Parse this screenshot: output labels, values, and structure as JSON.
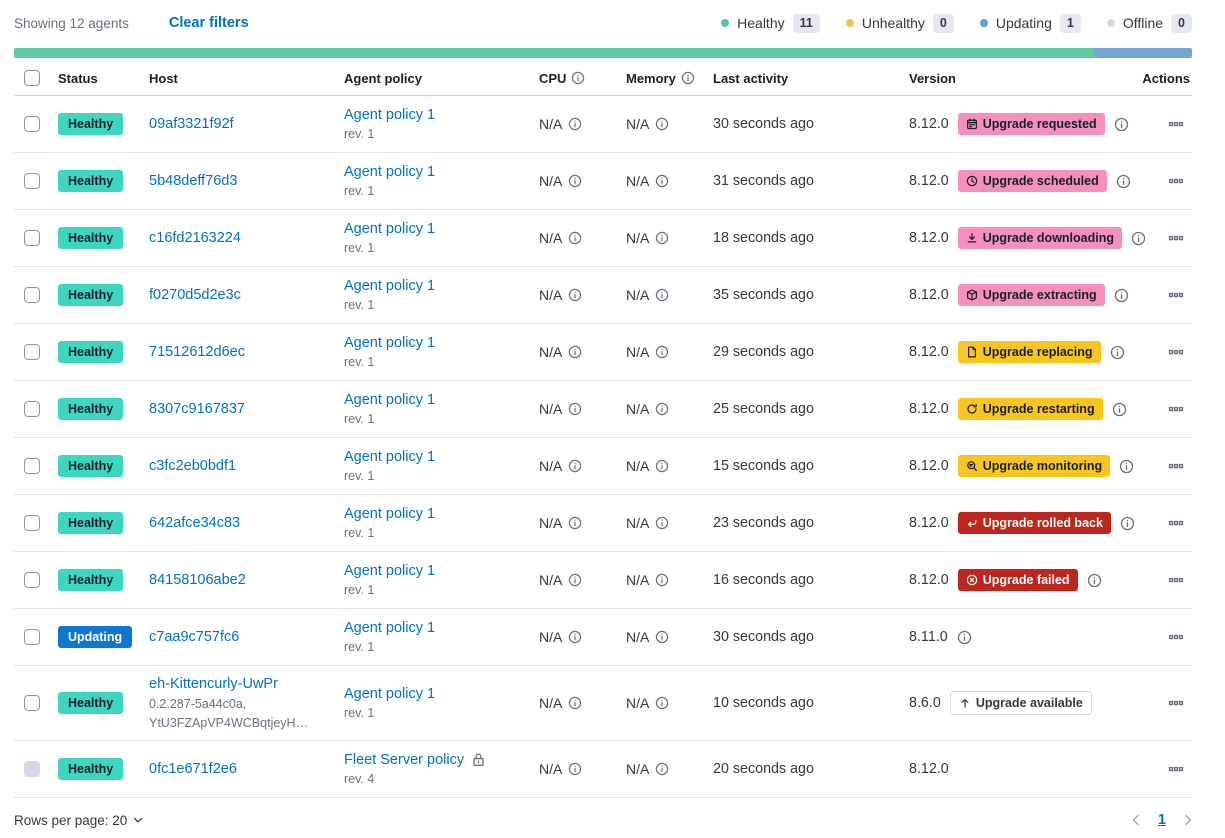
{
  "toolbar": {
    "showing_text": "Showing 12 agents",
    "clear_filters_label": "Clear filters",
    "legend": [
      {
        "label": "Healthy",
        "count": "11",
        "color": "#4ec5a5"
      },
      {
        "label": "Unhealthy",
        "count": "0",
        "color": "#e8c35f"
      },
      {
        "label": "Updating",
        "count": "1",
        "color": "#5b9fd8"
      },
      {
        "label": "Offline",
        "count": "0",
        "color": "#d3dae6"
      }
    ]
  },
  "status_bar": {
    "segments": [
      {
        "status": "healthy",
        "weight": 11,
        "color": "#5fc9a2"
      },
      {
        "status": "updating",
        "weight": 1,
        "color": "#74a6d4"
      }
    ]
  },
  "colors": {
    "healthy_badge": "#3dd6bf",
    "updating_badge": "#0e77d2",
    "accent_badge": "#f68fbe",
    "warning_badge": "#fac51d",
    "danger_badge": "#bd271e",
    "link": "#0071c2"
  },
  "table": {
    "columns": [
      "Status",
      "Host",
      "Agent policy",
      "CPU",
      "Memory",
      "Last activity",
      "Version",
      "Actions"
    ],
    "cpu_header_icon": "info-icon",
    "memory_header_icon": "info-icon",
    "actions_icon": "boxes-horizontal-icon",
    "info_icon": "info-icon",
    "lock_icon": "lock-icon"
  },
  "rows": [
    {
      "status": "Healthy",
      "status_kind": "healthy",
      "host": "09af3321f92f",
      "host_sub": [],
      "policy": "Agent policy 1",
      "policy_rev": "rev. 1",
      "policy_locked": false,
      "cpu": "N/A",
      "memory": "N/A",
      "last_activity": "30 seconds ago",
      "version": "8.12.0",
      "upgrade_badge": {
        "label": "Upgrade requested",
        "kind": "accent",
        "icon": "calendar-icon"
      },
      "version_info": true,
      "checkbox_disabled": false
    },
    {
      "status": "Healthy",
      "status_kind": "healthy",
      "host": "5b48deff76d3",
      "host_sub": [],
      "policy": "Agent policy 1",
      "policy_rev": "rev. 1",
      "policy_locked": false,
      "cpu": "N/A",
      "memory": "N/A",
      "last_activity": "31 seconds ago",
      "version": "8.12.0",
      "upgrade_badge": {
        "label": "Upgrade scheduled",
        "kind": "accent",
        "icon": "clock-icon"
      },
      "version_info": true,
      "checkbox_disabled": false
    },
    {
      "status": "Healthy",
      "status_kind": "healthy",
      "host": "c16fd2163224",
      "host_sub": [],
      "policy": "Agent policy 1",
      "policy_rev": "rev. 1",
      "policy_locked": false,
      "cpu": "N/A",
      "memory": "N/A",
      "last_activity": "18 seconds ago",
      "version": "8.12.0",
      "upgrade_badge": {
        "label": "Upgrade downloading",
        "kind": "accent",
        "icon": "download-icon"
      },
      "version_info": true,
      "checkbox_disabled": false
    },
    {
      "status": "Healthy",
      "status_kind": "healthy",
      "host": "f0270d5d2e3c",
      "host_sub": [],
      "policy": "Agent policy 1",
      "policy_rev": "rev. 1",
      "policy_locked": false,
      "cpu": "N/A",
      "memory": "N/A",
      "last_activity": "35 seconds ago",
      "version": "8.12.0",
      "upgrade_badge": {
        "label": "Upgrade extracting",
        "kind": "accent",
        "icon": "package-icon"
      },
      "version_info": true,
      "checkbox_disabled": false
    },
    {
      "status": "Healthy",
      "status_kind": "healthy",
      "host": "71512612d6ec",
      "host_sub": [],
      "policy": "Agent policy 1",
      "policy_rev": "rev. 1",
      "policy_locked": false,
      "cpu": "N/A",
      "memory": "N/A",
      "last_activity": "29 seconds ago",
      "version": "8.12.0",
      "upgrade_badge": {
        "label": "Upgrade replacing",
        "kind": "warning",
        "icon": "document-icon"
      },
      "version_info": true,
      "checkbox_disabled": false
    },
    {
      "status": "Healthy",
      "status_kind": "healthy",
      "host": "8307c9167837",
      "host_sub": [],
      "policy": "Agent policy 1",
      "policy_rev": "rev. 1",
      "policy_locked": false,
      "cpu": "N/A",
      "memory": "N/A",
      "last_activity": "25 seconds ago",
      "version": "8.12.0",
      "upgrade_badge": {
        "label": "Upgrade restarting",
        "kind": "warning",
        "icon": "refresh-icon"
      },
      "version_info": true,
      "checkbox_disabled": false
    },
    {
      "status": "Healthy",
      "status_kind": "healthy",
      "host": "c3fc2eb0bdf1",
      "host_sub": [],
      "policy": "Agent policy 1",
      "policy_rev": "rev. 1",
      "policy_locked": false,
      "cpu": "N/A",
      "memory": "N/A",
      "last_activity": "15 seconds ago",
      "version": "8.12.0",
      "upgrade_badge": {
        "label": "Upgrade monitoring",
        "kind": "warning",
        "icon": "inspect-icon"
      },
      "version_info": true,
      "checkbox_disabled": false
    },
    {
      "status": "Healthy",
      "status_kind": "healthy",
      "host": "642afce34c83",
      "host_sub": [],
      "policy": "Agent policy 1",
      "policy_rev": "rev. 1",
      "policy_locked": false,
      "cpu": "N/A",
      "memory": "N/A",
      "last_activity": "23 seconds ago",
      "version": "8.12.0",
      "upgrade_badge": {
        "label": "Upgrade rolled back",
        "kind": "danger",
        "icon": "return-arrow-icon"
      },
      "version_info": true,
      "checkbox_disabled": false
    },
    {
      "status": "Healthy",
      "status_kind": "healthy",
      "host": "84158106abe2",
      "host_sub": [],
      "policy": "Agent policy 1",
      "policy_rev": "rev. 1",
      "policy_locked": false,
      "cpu": "N/A",
      "memory": "N/A",
      "last_activity": "16 seconds ago",
      "version": "8.12.0",
      "upgrade_badge": {
        "label": "Upgrade failed",
        "kind": "danger",
        "icon": "error-icon"
      },
      "version_info": true,
      "checkbox_disabled": false
    },
    {
      "status": "Updating",
      "status_kind": "updating",
      "host": "c7aa9c757fc6",
      "host_sub": [],
      "policy": "Agent policy 1",
      "policy_rev": "rev. 1",
      "policy_locked": false,
      "cpu": "N/A",
      "memory": "N/A",
      "last_activity": "30 seconds ago",
      "version": "8.11.0",
      "upgrade_badge": null,
      "version_info": true,
      "checkbox_disabled": false
    },
    {
      "status": "Healthy",
      "status_kind": "healthy",
      "host": "eh-Kittencurly-UwPr",
      "host_sub": [
        "0.2.287-5a44c0a,",
        "YtU3FZApVP4WCBqtjeyH…"
      ],
      "policy": "Agent policy 1",
      "policy_rev": "rev. 1",
      "policy_locked": false,
      "cpu": "N/A",
      "memory": "N/A",
      "last_activity": "10 seconds ago",
      "version": "8.6.0",
      "upgrade_badge": {
        "label": "Upgrade available",
        "kind": "hollow",
        "icon": "up-arrow-icon"
      },
      "version_info": false,
      "checkbox_disabled": false
    },
    {
      "status": "Healthy",
      "status_kind": "healthy",
      "host": "0fc1e671f2e6",
      "host_sub": [],
      "policy": "Fleet Server policy",
      "policy_rev": "rev. 4",
      "policy_locked": true,
      "cpu": "N/A",
      "memory": "N/A",
      "last_activity": "20 seconds ago",
      "version": "8.12.0",
      "upgrade_badge": null,
      "version_info": false,
      "checkbox_disabled": true
    }
  ],
  "footer": {
    "rows_per_page_label": "Rows per page: 20",
    "rows_per_page_icon": "chevron-down-icon",
    "prev_icon": "chevron-left-icon",
    "next_icon": "chevron-right-icon",
    "page": "1"
  }
}
